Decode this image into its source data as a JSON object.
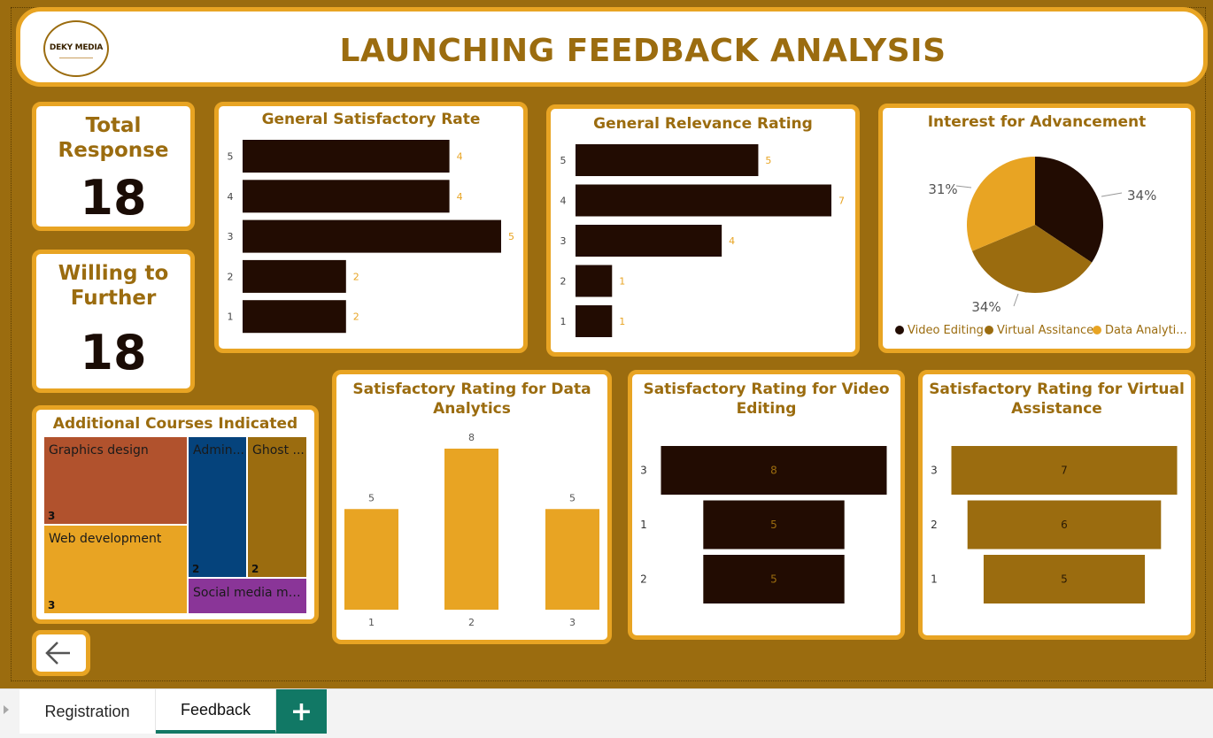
{
  "header": {
    "title": "LAUNCHING FEEDBACK ANALYSIS",
    "logo_text": "DEKY MEDIA"
  },
  "kpis": {
    "total_response": {
      "label_line1": "Total",
      "label_line2": "Response",
      "value": "18"
    },
    "willing_further": {
      "label_line1": "Willing to",
      "label_line2": "Further",
      "value": "18"
    }
  },
  "colors": {
    "dark": "#220c02",
    "brown": "#9b6c0f",
    "gold": "#e8a423",
    "background": "#9b6c0f"
  },
  "chart_data": [
    {
      "id": "general_satisfactory",
      "type": "bar",
      "orientation": "horizontal",
      "title": "General Satisfactory Rate",
      "categories": [
        "5",
        "4",
        "3",
        "2",
        "1"
      ],
      "values": [
        4,
        4,
        5,
        2,
        2
      ],
      "color": "#220c02"
    },
    {
      "id": "general_relevance",
      "type": "bar",
      "orientation": "horizontal",
      "title": "General Relevance Rating",
      "categories": [
        "5",
        "4",
        "3",
        "2",
        "1"
      ],
      "values": [
        5,
        7,
        4,
        1,
        1
      ],
      "color": "#220c02"
    },
    {
      "id": "interest_advancement",
      "type": "pie",
      "title": "Interest for Advancement",
      "slices": [
        {
          "name": "Video Editing",
          "percent": 34,
          "label": "34%",
          "color": "#220c02"
        },
        {
          "name": "Virtual Assitance",
          "percent": 34,
          "label": "34%",
          "color": "#9b6c0f"
        },
        {
          "name": "Data Analytics",
          "percent": 31,
          "label": "31%",
          "color": "#e8a423"
        }
      ],
      "legend_labels": [
        "Video Editing",
        "Virtual Assitance",
        "Data Analyti..."
      ],
      "legend_position": "bottom"
    },
    {
      "id": "additional_courses",
      "type": "treemap",
      "title": "Additional Courses Indicated",
      "items": [
        {
          "name": "Graphics design",
          "label": "Graphics design",
          "value": 3,
          "color": "#b1522d"
        },
        {
          "name": "Web development",
          "label": "Web development",
          "value": 3,
          "color": "#e8a423"
        },
        {
          "name": "Administration",
          "label": "Admin...",
          "value": 2,
          "color": "#05437c"
        },
        {
          "name": "Ghost writing",
          "label": "Ghost ...",
          "value": 2,
          "color": "#9b6c0f"
        },
        {
          "name": "Social media management",
          "label": "Social media ma...",
          "value": 1,
          "color": "#8a3598"
        }
      ]
    },
    {
      "id": "sat_data_analytics",
      "type": "bar",
      "orientation": "vertical",
      "title_line1": "Satisfactory Rating for Data",
      "title_line2": "Analytics",
      "categories": [
        "1",
        "2",
        "3"
      ],
      "values": [
        5,
        8,
        5
      ],
      "color": "#e8a423"
    },
    {
      "id": "sat_video_editing",
      "type": "funnel",
      "title_line1": "Satisfactory Rating for Video",
      "title_line2": "Editing",
      "categories": [
        "3",
        "1",
        "2"
      ],
      "values": [
        8,
        5,
        5
      ],
      "color": "#220c02",
      "label_color": "#9b6c0f"
    },
    {
      "id": "sat_virtual_assistance",
      "type": "funnel",
      "title_line1": "Satisfactory Rating for Virtual",
      "title_line2": "Assistance",
      "categories": [
        "3",
        "2",
        "1"
      ],
      "values": [
        7,
        6,
        5
      ],
      "color": "#9b6c0f",
      "label_color": "#2a1a05"
    }
  ],
  "tabs": [
    {
      "label": "Registration",
      "active": false
    },
    {
      "label": "Feedback",
      "active": true
    }
  ],
  "icons": {
    "back": "arrow-left-icon",
    "add_page": "plus-icon"
  }
}
